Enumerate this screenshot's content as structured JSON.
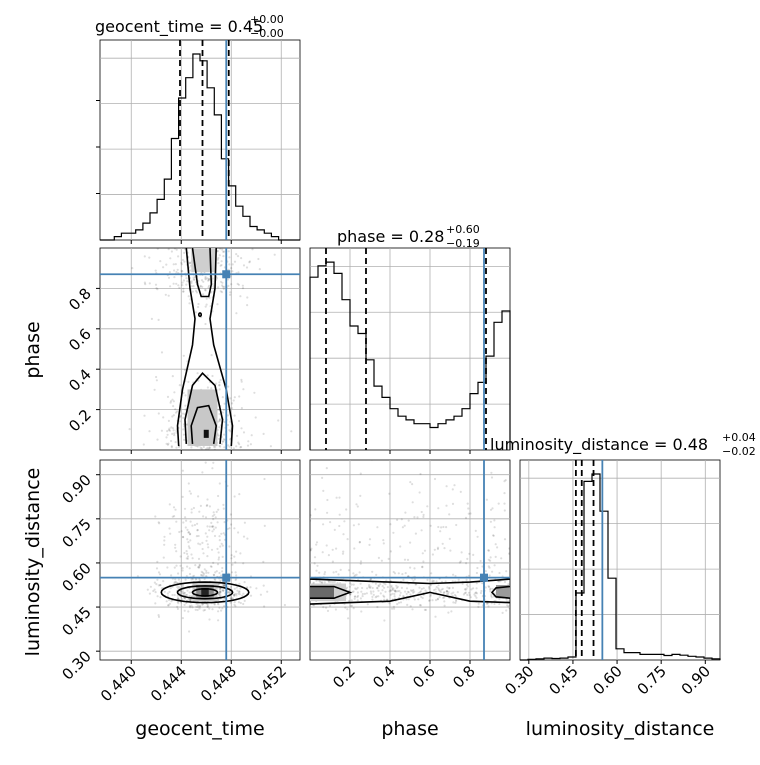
{
  "colors": {
    "truth": "#4682b4",
    "hist": "#000000",
    "grid": "#b0b0b0",
    "quantile": "#000000"
  },
  "titles": [
    {
      "label": "geocent_time = 0.45",
      "sup": "+0.00",
      "sub": "−0.00"
    },
    {
      "label": "phase = 0.28",
      "sup": "+0.60",
      "sub": "−0.19"
    },
    {
      "label": "luminosity_distance = 0.48",
      "sup": "+0.04",
      "sub": "−0.02"
    }
  ],
  "axis_labels": {
    "x": [
      "geocent_time",
      "phase",
      "luminosity_distance"
    ],
    "y": [
      "phase",
      "luminosity_distance"
    ]
  },
  "tick_labels": {
    "geocent_time": [
      "0.440",
      "0.444",
      "0.448",
      "0.452"
    ],
    "phase_y": [
      "0.2",
      "0.4",
      "0.6",
      "0.8"
    ],
    "phase_x": [
      "0.2",
      "0.4",
      "0.6",
      "0.8"
    ],
    "luminosity_distance_y": [
      "0.30",
      "0.45",
      "0.60",
      "0.75",
      "0.90"
    ],
    "luminosity_distance_x": [
      "0.30",
      "0.45",
      "0.60",
      "0.75",
      "0.90"
    ]
  },
  "chart_data": {
    "type": "corner",
    "parameters": [
      "geocent_time",
      "phase",
      "luminosity_distance"
    ],
    "ranges": [
      [
        0.4375,
        0.4535
      ],
      [
        0.0,
        1.0
      ],
      [
        0.27,
        0.95
      ]
    ],
    "truths": [
      0.4476,
      0.87,
      0.55
    ],
    "quantiles": [
      [
        0.4439,
        0.4457,
        0.4478
      ],
      [
        0.08,
        0.28,
        0.88
      ],
      [
        0.46,
        0.48,
        0.52
      ]
    ],
    "histograms": [
      {
        "parameter": "geocent_time",
        "values": [
          0,
          0,
          1,
          2,
          2,
          3,
          5,
          8,
          12,
          18,
          30,
          42,
          48,
          55,
          53,
          45,
          37,
          24,
          16,
          10,
          7,
          4,
          3,
          2,
          1,
          0,
          0,
          0
        ]
      },
      {
        "parameter": "phase",
        "values": [
          46,
          49,
          50,
          47,
          40,
          33,
          31,
          24,
          17,
          14,
          11,
          9,
          8,
          7,
          7,
          6,
          7,
          8,
          9,
          11,
          15,
          18,
          25,
          34,
          37
        ]
      },
      {
        "parameter": "luminosity_distance",
        "values": [
          0,
          0.2,
          0.3,
          0.5,
          0.4,
          0.5,
          0.8,
          18,
          48,
          50,
          40,
          22,
          3,
          2,
          2,
          1.5,
          1.5,
          1.5,
          1.2,
          1.5,
          1.3,
          1,
          0.8,
          0.5,
          0.3
        ]
      }
    ],
    "grid": true
  }
}
